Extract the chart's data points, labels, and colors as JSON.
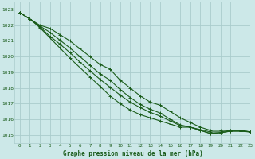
{
  "title": "Graphe pression niveau de la mer (hPa)",
  "background_color": "#cce8e8",
  "grid_color": "#aacccc",
  "line_color": "#1a5c1a",
  "xlim": [
    -0.5,
    23
  ],
  "ylim": [
    1014.5,
    1023.5
  ],
  "yticks": [
    1015,
    1016,
    1017,
    1018,
    1019,
    1020,
    1021,
    1022,
    1023
  ],
  "xticks": [
    0,
    1,
    2,
    3,
    4,
    5,
    6,
    7,
    8,
    9,
    10,
    11,
    12,
    13,
    14,
    15,
    16,
    17,
    18,
    19,
    20,
    21,
    22,
    23
  ],
  "series": [
    [
      1022.8,
      1022.4,
      1022.0,
      1021.8,
      1021.4,
      1021.0,
      1020.5,
      1020.0,
      1019.5,
      1019.2,
      1018.5,
      1018.0,
      1017.5,
      1017.1,
      1016.9,
      1016.5,
      1016.1,
      1015.8,
      1015.5,
      1015.3,
      1015.3,
      1015.3,
      1015.3,
      1015.2
    ],
    [
      1022.8,
      1022.4,
      1021.95,
      1021.55,
      1021.05,
      1020.55,
      1020.0,
      1019.45,
      1018.9,
      1018.5,
      1017.9,
      1017.4,
      1016.95,
      1016.65,
      1016.4,
      1016.0,
      1015.65,
      1015.5,
      1015.35,
      1015.2,
      1015.2,
      1015.3,
      1015.3,
      1015.2
    ],
    [
      1022.8,
      1022.4,
      1021.9,
      1021.3,
      1020.8,
      1020.25,
      1019.65,
      1019.1,
      1018.55,
      1018.05,
      1017.55,
      1017.1,
      1016.75,
      1016.45,
      1016.2,
      1015.9,
      1015.6,
      1015.5,
      1015.3,
      1015.1,
      1015.15,
      1015.25,
      1015.25,
      1015.2
    ],
    [
      1022.8,
      1022.4,
      1021.85,
      1021.2,
      1020.55,
      1019.9,
      1019.3,
      1018.7,
      1018.1,
      1017.5,
      1017.0,
      1016.6,
      1016.3,
      1016.1,
      1015.9,
      1015.7,
      1015.5,
      1015.5,
      1015.3,
      1015.1,
      1015.15,
      1015.25,
      1015.25,
      1015.2
    ]
  ]
}
